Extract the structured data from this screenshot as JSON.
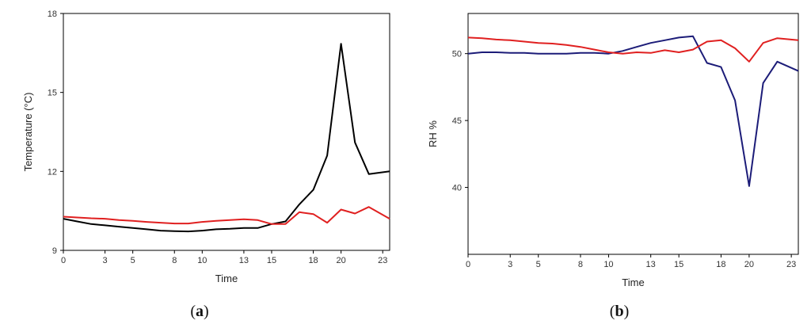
{
  "chart_data": [
    {
      "type": "line",
      "panel_label": "a",
      "xlabel": "Time",
      "ylabel": "Temperature (°C)",
      "xlim": [
        0,
        23.5
      ],
      "ylim": [
        9,
        18
      ],
      "xticks": [
        0,
        3,
        5,
        8,
        10,
        13,
        15,
        18,
        20,
        23
      ],
      "yticks": [
        9,
        12,
        15,
        18
      ],
      "series": [
        {
          "color": "#000000",
          "x": [
            0,
            1,
            2,
            3,
            4,
            5,
            6,
            7,
            8,
            9,
            10,
            11,
            12,
            13,
            14,
            15,
            16,
            17,
            18,
            19,
            20,
            21,
            22,
            23.5
          ],
          "y": [
            10.2,
            10.1,
            10.0,
            9.95,
            9.9,
            9.85,
            9.8,
            9.75,
            9.73,
            9.72,
            9.75,
            9.8,
            9.82,
            9.85,
            9.85,
            10.0,
            10.1,
            10.75,
            11.3,
            12.6,
            16.85,
            13.1,
            11.9,
            12.0
          ]
        },
        {
          "color": "#e02020",
          "x": [
            0,
            1,
            2,
            3,
            4,
            5,
            6,
            7,
            8,
            9,
            10,
            11,
            12,
            13,
            14,
            15,
            16,
            17,
            18,
            19,
            20,
            21,
            22,
            23.5
          ],
          "y": [
            10.28,
            10.25,
            10.22,
            10.2,
            10.15,
            10.12,
            10.08,
            10.05,
            10.02,
            10.02,
            10.08,
            10.12,
            10.15,
            10.18,
            10.15,
            10.0,
            10.0,
            10.45,
            10.38,
            10.05,
            10.55,
            10.4,
            10.65,
            10.2
          ]
        }
      ]
    },
    {
      "type": "line",
      "panel_label": "b",
      "xlabel": "Time",
      "ylabel": "RH %",
      "xlim": [
        0,
        23.5
      ],
      "ylim": [
        35,
        53
      ],
      "xticks": [
        0,
        3,
        5,
        8,
        10,
        13,
        15,
        18,
        20,
        23
      ],
      "yticks": [
        40,
        45,
        50
      ],
      "series": [
        {
          "color": "#1c1c78",
          "x": [
            0,
            1,
            2,
            3,
            4,
            5,
            6,
            7,
            8,
            9,
            10,
            11,
            12,
            13,
            14,
            15,
            16,
            17,
            18,
            19,
            20,
            21,
            22,
            23.5
          ],
          "y": [
            50.0,
            50.1,
            50.1,
            50.05,
            50.05,
            50.0,
            50.0,
            50.0,
            50.05,
            50.05,
            50.0,
            50.2,
            50.5,
            50.8,
            51.0,
            51.2,
            51.3,
            49.3,
            49.0,
            46.5,
            40.1,
            47.8,
            49.4,
            48.7
          ]
        },
        {
          "color": "#e02020",
          "x": [
            0,
            1,
            2,
            3,
            4,
            5,
            6,
            7,
            8,
            9,
            10,
            11,
            12,
            13,
            14,
            15,
            16,
            17,
            18,
            19,
            20,
            21,
            22,
            23.5
          ],
          "y": [
            51.2,
            51.15,
            51.05,
            51.0,
            50.9,
            50.8,
            50.75,
            50.65,
            50.5,
            50.3,
            50.1,
            50.0,
            50.1,
            50.05,
            50.25,
            50.1,
            50.3,
            50.9,
            51.0,
            50.4,
            49.4,
            50.8,
            51.15,
            51.0
          ]
        }
      ]
    }
  ]
}
